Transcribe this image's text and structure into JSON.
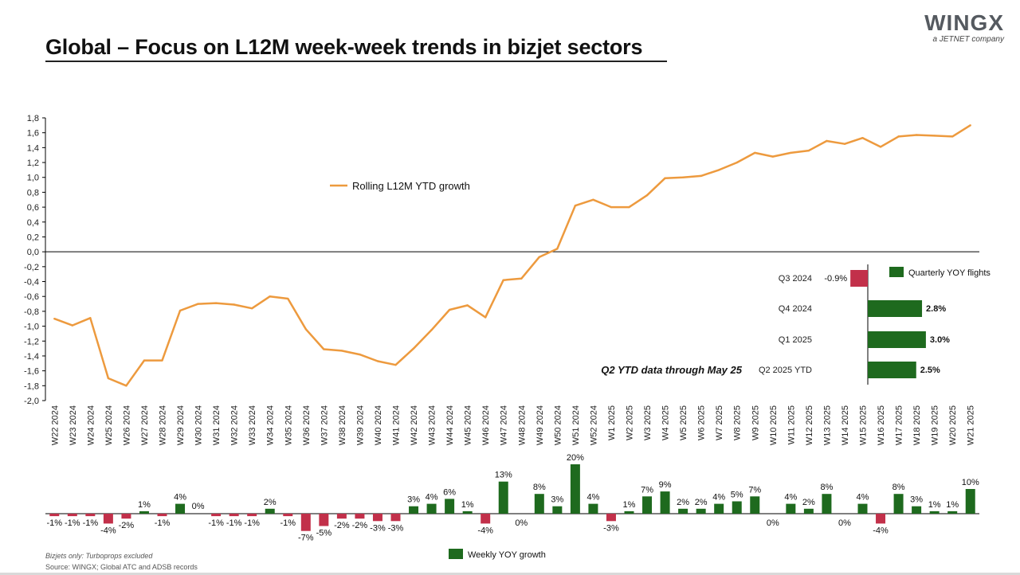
{
  "header": {
    "title": "Global – Focus on L12M week-week trends in bizjet sectors",
    "logo_text": "WINGX",
    "logo_subtitle": "a JETNET company"
  },
  "footer": {
    "note": "Bizjets only: Turboprops excluded",
    "source": "Source: WINGX; Global ATC and ADSB records"
  },
  "colors": {
    "line": "#ED9A3E",
    "positive": "#1E6A1E",
    "negative": "#C2304A",
    "axis": "#000000"
  },
  "chart_data": [
    {
      "type": "line",
      "series": [
        {
          "name": "Rolling L12M YTD growth",
          "values": [
            -0.9,
            -0.99,
            -0.89,
            -1.7,
            -1.8,
            -1.46,
            -1.46,
            -0.79,
            -0.7,
            -0.69,
            -0.71,
            -0.76,
            -0.6,
            -0.63,
            -1.04,
            -1.31,
            -1.33,
            -1.38,
            -1.47,
            -1.52,
            -1.3,
            -1.05,
            -0.78,
            -0.72,
            -0.88,
            -0.38,
            -0.36,
            -0.07,
            0.04,
            0.62,
            0.7,
            0.6,
            0.6,
            0.76,
            0.99,
            1.0,
            1.02,
            1.1,
            1.2,
            1.33,
            1.28,
            1.33,
            1.36,
            1.49,
            1.45,
            1.53,
            1.41,
            1.55,
            1.57,
            1.56,
            1.55,
            1.7
          ]
        }
      ],
      "categories": [
        "W22 2024",
        "W23 2024",
        "W24 2024",
        "W25 2024",
        "W26 2024",
        "W27 2024",
        "W28 2024",
        "W29 2024",
        "W30 2024",
        "W31 2024",
        "W32 2024",
        "W33 2024",
        "W34 2024",
        "W35 2024",
        "W36 2024",
        "W37 2024",
        "W38 2024",
        "W39 2024",
        "W40 2024",
        "W41 2024",
        "W42 2024",
        "W43 2024",
        "W44 2024",
        "W45 2024",
        "W46 2024",
        "W47 2024",
        "W48 2024",
        "W49 2024",
        "W50 2024",
        "W51 2024",
        "W52 2024",
        "W1 2025",
        "W2 2025",
        "W3 2025",
        "W4 2025",
        "W5 2025",
        "W6 2025",
        "W7 2025",
        "W8 2025",
        "W9 2025",
        "W10 2025",
        "W11 2025",
        "W12 2025",
        "W13 2025",
        "W14 2025",
        "W15 2025",
        "W16 2025",
        "W17 2025",
        "W18 2025",
        "W19 2025",
        "W20 2025",
        "W21 2025"
      ],
      "ylim": [
        -2.0,
        1.8
      ],
      "yticks": [
        "1,8",
        "1,6",
        "1,4",
        "1,2",
        "1,0",
        "0,8",
        "0,6",
        "0,4",
        "0,2",
        "0,0",
        "-0,2",
        "-0,4",
        "-0,6",
        "-0,8",
        "-1,0",
        "-1,2",
        "-1,4",
        "-1,6",
        "-1,8",
        "-2,0"
      ],
      "legend": "left-center"
    },
    {
      "type": "bar",
      "categories": [
        "Q3 2024",
        "Q4 2024",
        "Q1 2025",
        "Q2 2025 YTD"
      ],
      "values": [
        -0.9,
        2.8,
        3.0,
        2.5
      ],
      "labels": [
        "-0.9%",
        "2.8%",
        "3.0%",
        "2.5%"
      ],
      "series_name": "Quarterly YOY flights",
      "annotation": "Q2 YTD data through May 25",
      "orientation": "horizontal"
    },
    {
      "type": "bar",
      "series_name": "Weekly YOY growth",
      "values": [
        -1,
        -1,
        -1,
        -4,
        -2,
        1,
        -1,
        4,
        0,
        -1,
        -1,
        -1,
        2,
        -1,
        -7,
        -5,
        -2,
        -2,
        -3,
        -3,
        3,
        4,
        6,
        1,
        -4,
        13,
        0,
        8,
        3,
        20,
        4,
        -3,
        1,
        7,
        9,
        2,
        2,
        4,
        5,
        7,
        0,
        4,
        2,
        8,
        0,
        4,
        -4,
        8,
        3,
        1,
        1,
        10
      ],
      "labels": [
        "-1%",
        "-1%",
        "-1%",
        "-4%",
        "-2%",
        "1%",
        "-1%",
        "4%",
        "0%",
        "-1%",
        "-1%",
        "-1%",
        "2%",
        "-1%",
        "-7%",
        "-5%",
        "-2%",
        "-2%",
        "-3%",
        "-3%",
        "3%",
        "4%",
        "6%",
        "1%",
        "-4%",
        "13%",
        "0%",
        "8%",
        "3%",
        "20%",
        "4%",
        "-3%",
        "1%",
        "7%",
        "9%",
        "2%",
        "2%",
        "4%",
        "5%",
        "7%",
        "0%",
        "4%",
        "2%",
        "8%",
        "0%",
        "4%",
        "-4%",
        "8%",
        "3%",
        "1%",
        "1%",
        "10%"
      ],
      "legend": "bottom-center"
    }
  ]
}
